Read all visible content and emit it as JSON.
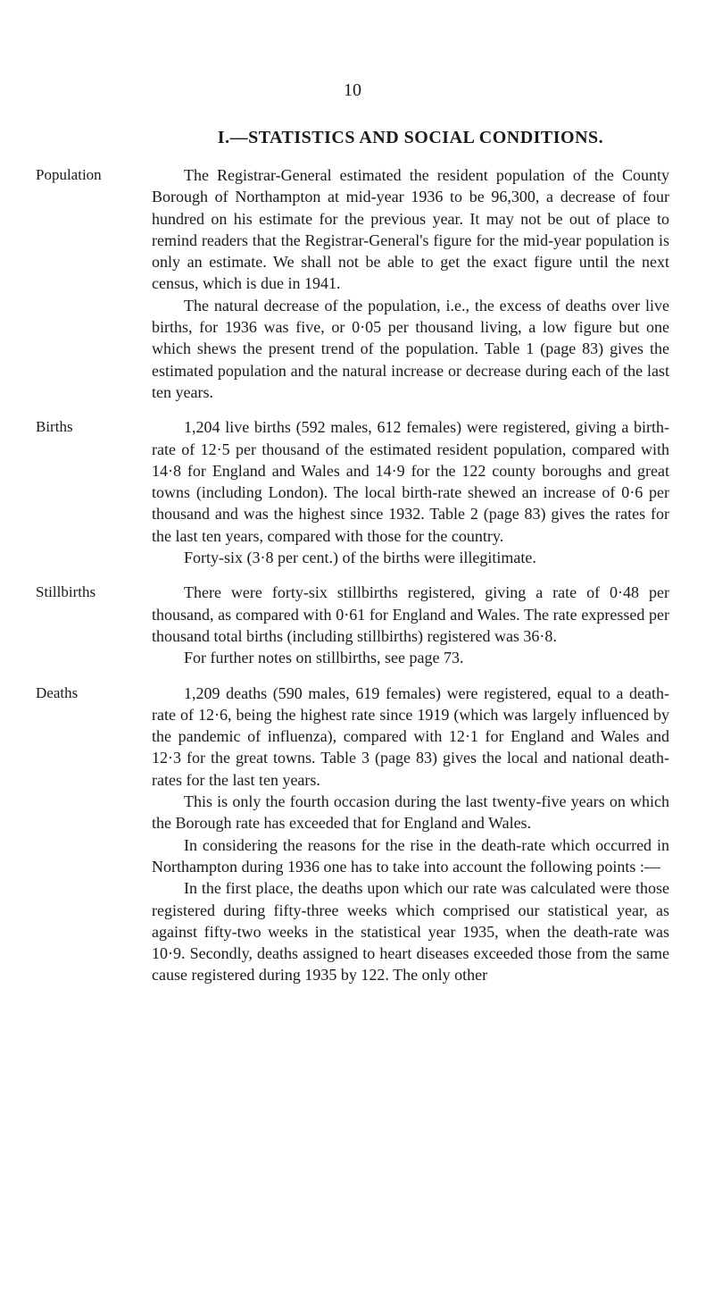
{
  "page_number": "10",
  "heading": "I.—STATISTICS AND SOCIAL CONDITIONS.",
  "sections": [
    {
      "label": "Population",
      "paragraphs": [
        "The Registrar-General estimated the resident population of the County Borough of Northampton at mid-year 1936 to be 96,300, a decrease of four hundred on his estimate for the previous year. It may not be out of place to remind readers that the Registrar-General's figure for the mid-year population is only an estimate. We shall not be able to get the exact figure until the next census, which is due in 1941.",
        "The natural decrease of the population, i.e., the excess of deaths over live births, for 1936 was five, or 0·05 per thousand living, a low figure but one which shews the present trend of the population. Table 1 (page 83) gives the estimated population and the natural increase or decrease during each of the last ten years."
      ]
    },
    {
      "label": "Births",
      "paragraphs": [
        "1,204 live births (592 males, 612 females) were registered, giving a birth-rate of 12·5 per thousand of the estimated resident population, compared with 14·8 for England and Wales and 14·9 for the 122 county boroughs and great towns (including London). The local birth-rate shewed an increase of 0·6 per thousand and was the highest since 1932. Table 2 (page 83) gives the rates for the last ten years, compared with those for the country.",
        "Forty-six (3·8 per cent.) of the births were illegitimate."
      ]
    },
    {
      "label": "Stillbirths",
      "paragraphs": [
        "There were forty-six stillbirths registered, giving a rate of 0·48 per thousand, as compared with 0·61 for England and Wales. The rate expressed per thousand total births (including stillbirths) registered was 36·8.",
        "For further notes on stillbirths, see page 73."
      ]
    },
    {
      "label": "Deaths",
      "paragraphs": [
        "1,209 deaths (590 males, 619 females) were registered, equal to a death-rate of 12·6, being the highest rate since 1919 (which was largely influenced by the pandemic of influenza), compared with 12·1 for England and Wales and 12·3 for the great towns. Table 3 (page 83) gives the local and national death-rates for the last ten years.",
        "This is only the fourth occasion during the last twenty-five years on which the Borough rate has exceeded that for England and Wales.",
        "In considering the reasons for the rise in the death-rate which occurred in Northampton during 1936 one has to take into account the following points :—",
        "In the first place, the deaths upon which our rate was calculated were those registered during fifty-three weeks which comprised our statistical year, as against fifty-two weeks in the statistical year 1935, when the death-rate was 10·9. Secondly, deaths assigned to heart diseases exceeded those from the same cause registered during 1935 by 122. The only other"
      ]
    }
  ]
}
